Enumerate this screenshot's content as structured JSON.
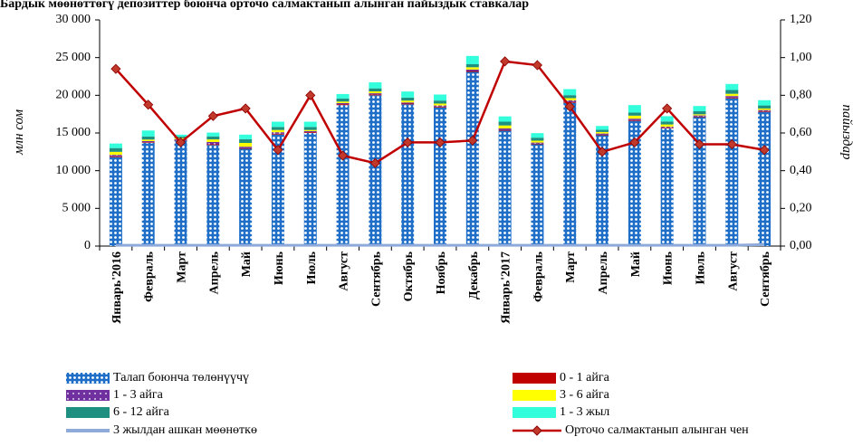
{
  "chart_data": {
    "type": "bar",
    "title": "Бардык мөөнөттөгү депозиттер боюнча орточо салмактанып алынган пайыздык ставкалар",
    "ylabel_left": "млн сом",
    "ylabel_right": "пайыздар",
    "ylim_left": [
      0,
      30000
    ],
    "ylim_right": [
      0,
      1.2
    ],
    "yticks_left": [
      "0",
      "5 000",
      "10 000",
      "15 000",
      "20 000",
      "25 000",
      "30 000"
    ],
    "yticks_right": [
      "0,00",
      "0,20",
      "0,40",
      "0,60",
      "0,80",
      "1,00",
      "1,20"
    ],
    "categories": [
      "Январь'2016",
      "Февраль",
      "Март",
      "Апрель",
      "Май",
      "Июнь",
      "Июль",
      "Август",
      "Сентябрь",
      "Октябрь",
      "Ноябрь",
      "Декабрь",
      "Январь'2017",
      "Февраль",
      "Март",
      "Апрель",
      "Май",
      "Июнь",
      "Июль",
      "Август",
      "Сентябрь"
    ],
    "series": [
      {
        "name": "Талап боюнча төлөнүүчү",
        "color": "#1f6fc8",
        "pattern": "dots",
        "values": [
          11800,
          13700,
          14000,
          13400,
          12900,
          14800,
          15000,
          18700,
          20000,
          18800,
          18400,
          23100,
          15300,
          13500,
          19000,
          14700,
          16600,
          15600,
          17100,
          19600,
          17800
        ]
      },
      {
        "name": "0 - 1 айга",
        "color": "#c00000",
        "values": [
          100,
          80,
          60,
          100,
          80,
          100,
          100,
          120,
          120,
          100,
          100,
          120,
          100,
          80,
          120,
          80,
          100,
          80,
          80,
          100,
          100
        ]
      },
      {
        "name": "1 - 3 айга",
        "color": "#7030a0",
        "pattern": "stars",
        "values": [
          200,
          150,
          120,
          300,
          200,
          200,
          150,
          150,
          150,
          150,
          150,
          200,
          200,
          150,
          200,
          150,
          200,
          150,
          150,
          200,
          150
        ]
      },
      {
        "name": "3 - 6 айга",
        "color": "#ffff00",
        "values": [
          400,
          200,
          150,
          350,
          500,
          300,
          150,
          200,
          250,
          250,
          250,
          300,
          400,
          250,
          300,
          200,
          400,
          300,
          150,
          300,
          200
        ]
      },
      {
        "name": "6 - 12 айга",
        "color": "#1f8f7f",
        "values": [
          500,
          400,
          200,
          400,
          500,
          400,
          400,
          400,
          400,
          400,
          400,
          400,
          500,
          400,
          400,
          300,
          400,
          400,
          400,
          500,
          400
        ]
      },
      {
        "name": "1 - 3 жыл",
        "color": "#33ffdd",
        "values": [
          600,
          800,
          250,
          500,
          600,
          700,
          700,
          600,
          800,
          800,
          800,
          1100,
          700,
          600,
          800,
          500,
          1000,
          700,
          700,
          800,
          700
        ]
      }
    ],
    "secondary_lines": [
      {
        "name": "3 жылдан ашкан мөөнөткө",
        "color": "#8eaadb",
        "axis": "left",
        "values": [
          100,
          100,
          100,
          100,
          100,
          100,
          100,
          100,
          100,
          100,
          100,
          100,
          100,
          100,
          100,
          100,
          100,
          100,
          100,
          100,
          200
        ]
      },
      {
        "name": "Орточо салмактанып алынган чен",
        "color": "#c00000",
        "marker": "diamond",
        "axis": "right",
        "values": [
          0.94,
          0.75,
          0.55,
          0.69,
          0.73,
          0.51,
          0.8,
          0.48,
          0.44,
          0.55,
          0.55,
          0.56,
          0.98,
          0.96,
          0.74,
          0.5,
          0.55,
          0.73,
          0.54,
          0.54,
          0.51
        ]
      }
    ],
    "legend_position": "bottom",
    "grid": false
  }
}
